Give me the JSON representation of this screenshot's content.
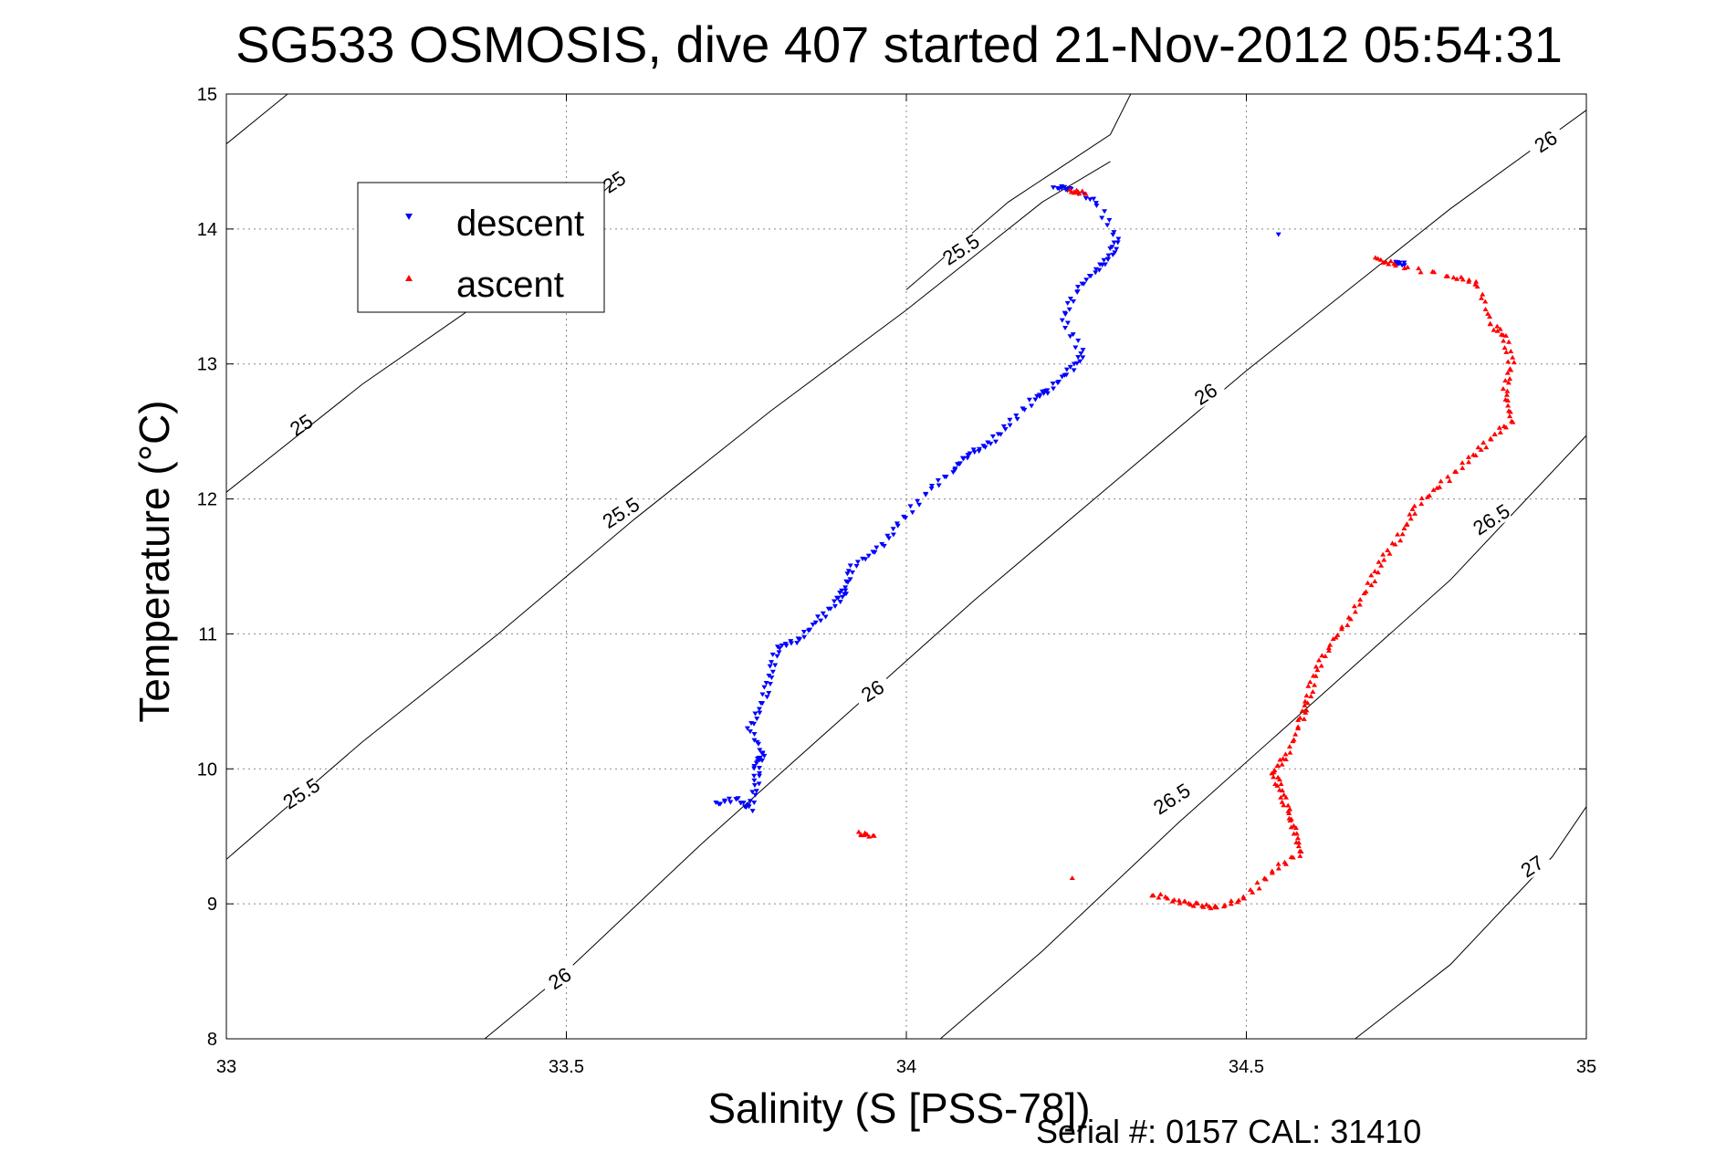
{
  "chart_data": {
    "type": "scatter",
    "title": "SG533 OSMOSIS, dive 407 started 21-Nov-2012 05:54:31",
    "xlabel": "Salinity (S [PSS-78])",
    "ylabel": "Temperature (°C)",
    "xlim": [
      33,
      35
    ],
    "ylim": [
      8,
      15
    ],
    "x_ticks": [
      "33",
      "33.5",
      "34",
      "34.5",
      "35"
    ],
    "y_ticks": [
      "8",
      "9",
      "10",
      "11",
      "12",
      "13",
      "14",
      "15"
    ],
    "grid": true,
    "legend_position": "top-left",
    "footer": "Serial #: 0157  CAL: 31410",
    "series": [
      {
        "name": "descent",
        "color": "#0000ff",
        "marker": "triangle-down",
        "points": [
          [
            33.72,
            9.74
          ],
          [
            33.75,
            9.78
          ],
          [
            33.77,
            9.7
          ],
          [
            33.78,
            9.9
          ],
          [
            33.78,
            10.05
          ],
          [
            33.79,
            10.1
          ],
          [
            33.77,
            10.3
          ],
          [
            33.79,
            10.5
          ],
          [
            33.8,
            10.7
          ],
          [
            33.81,
            10.9
          ],
          [
            33.84,
            10.95
          ],
          [
            33.87,
            11.1
          ],
          [
            33.9,
            11.25
          ],
          [
            33.91,
            11.33
          ],
          [
            33.92,
            11.5
          ],
          [
            33.96,
            11.63
          ],
          [
            33.99,
            11.82
          ],
          [
            34.03,
            12.05
          ],
          [
            34.07,
            12.22
          ],
          [
            34.09,
            12.33
          ],
          [
            34.12,
            12.4
          ],
          [
            34.15,
            12.55
          ],
          [
            34.19,
            12.75
          ],
          [
            34.21,
            12.81
          ],
          [
            34.24,
            12.95
          ],
          [
            34.26,
            13.07
          ],
          [
            34.23,
            13.33
          ],
          [
            34.25,
            13.55
          ],
          [
            34.28,
            13.7
          ],
          [
            34.3,
            13.8
          ],
          [
            34.31,
            13.92
          ],
          [
            34.28,
            14.2
          ],
          [
            34.24,
            14.3
          ],
          [
            34.22,
            14.31
          ],
          [
            34.55,
            13.95
          ],
          [
            34.72,
            13.75
          ],
          [
            34.73,
            13.74
          ]
        ]
      },
      {
        "name": "ascent",
        "color": "#ff0000",
        "marker": "triangle-up",
        "points": [
          [
            33.93,
            9.52
          ],
          [
            33.95,
            9.5
          ],
          [
            34.24,
            9.2
          ],
          [
            34.36,
            9.07
          ],
          [
            34.4,
            9.02
          ],
          [
            34.43,
            8.99
          ],
          [
            34.46,
            8.97
          ],
          [
            34.5,
            9.05
          ],
          [
            34.54,
            9.25
          ],
          [
            34.58,
            9.38
          ],
          [
            34.57,
            9.55
          ],
          [
            34.56,
            9.7
          ],
          [
            34.55,
            9.85
          ],
          [
            34.54,
            9.98
          ],
          [
            34.56,
            10.1
          ],
          [
            34.58,
            10.35
          ],
          [
            34.59,
            10.5
          ],
          [
            34.6,
            10.7
          ],
          [
            34.62,
            10.9
          ],
          [
            34.65,
            11.1
          ],
          [
            34.68,
            11.35
          ],
          [
            34.7,
            11.55
          ],
          [
            34.73,
            11.75
          ],
          [
            34.75,
            11.95
          ],
          [
            34.79,
            12.12
          ],
          [
            34.83,
            12.3
          ],
          [
            34.86,
            12.45
          ],
          [
            34.89,
            12.58
          ],
          [
            34.88,
            12.8
          ],
          [
            34.89,
            13.0
          ],
          [
            34.88,
            13.2
          ],
          [
            34.86,
            13.3
          ],
          [
            34.84,
            13.6
          ],
          [
            34.8,
            13.65
          ],
          [
            34.72,
            13.73
          ],
          [
            34.69,
            13.78
          ],
          [
            34.24,
            14.28
          ],
          [
            34.26,
            14.27
          ]
        ]
      }
    ],
    "contours": [
      {
        "level": "25",
        "points": [
          [
            33,
            14.63
          ],
          [
            33.09,
            15
          ]
        ],
        "labels": [
          {
            "text": "25",
            "at": [
              33.11,
              12.55
            ],
            "angle": -33
          },
          {
            "text": "25",
            "at": [
              33.57,
              14.35
            ],
            "angle": -33
          }
        ]
      },
      {
        "level": "25 (lower)",
        "points": [
          [
            33,
            12.05
          ],
          [
            33.2,
            12.85
          ],
          [
            33.4,
            13.55
          ],
          [
            33.57,
            14.35
          ]
        ],
        "labels": []
      },
      {
        "level": "25.5",
        "points": [
          [
            33,
            9.33
          ],
          [
            33.2,
            10.2
          ],
          [
            33.4,
            11.0
          ],
          [
            33.6,
            11.85
          ],
          [
            33.8,
            12.65
          ],
          [
            34.0,
            13.4
          ],
          [
            34.2,
            14.2
          ],
          [
            34.3,
            14.5
          ]
        ],
        "labels": [
          {
            "text": "25.5",
            "at": [
              33.11,
              9.82
            ],
            "angle": -33
          },
          {
            "text": "25.5",
            "at": [
              33.58,
              11.9
            ],
            "angle": -33
          }
        ]
      },
      {
        "level": "25.5 (upper)",
        "points": [
          [
            34.0,
            13.55
          ],
          [
            34.15,
            14.2
          ],
          [
            34.3,
            14.7
          ],
          [
            34.33,
            15
          ]
        ],
        "labels": [
          {
            "text": "25.5",
            "at": [
              34.08,
              13.85
            ],
            "angle": -33
          }
        ]
      },
      {
        "level": "26",
        "points": [
          [
            33.38,
            8
          ],
          [
            33.5,
            8.5
          ],
          [
            33.7,
            9.45
          ],
          [
            33.9,
            10.35
          ],
          [
            34.1,
            11.25
          ],
          [
            34.3,
            12.1
          ],
          [
            34.5,
            12.95
          ],
          [
            34.6,
            13.35
          ],
          [
            34.8,
            14.15
          ],
          [
            35,
            14.88
          ]
        ],
        "labels": [
          {
            "text": "26",
            "at": [
              33.49,
              8.45
            ],
            "angle": -33
          },
          {
            "text": "26",
            "at": [
              33.95,
              10.58
            ],
            "angle": -33
          },
          {
            "text": "26",
            "at": [
              34.44,
              12.78
            ],
            "angle": -33
          },
          {
            "text": "26",
            "at": [
              34.94,
              14.65
            ],
            "angle": -33
          }
        ]
      },
      {
        "level": "26.5",
        "points": [
          [
            34.05,
            8
          ],
          [
            34.2,
            8.65
          ],
          [
            34.4,
            9.6
          ],
          [
            34.6,
            10.5
          ],
          [
            34.8,
            11.4
          ],
          [
            35,
            12.47
          ]
        ],
        "labels": [
          {
            "text": "26.5",
            "at": [
              34.39,
              9.78
            ],
            "angle": -33
          },
          {
            "text": "26.5",
            "at": [
              34.86,
              11.85
            ],
            "angle": -33
          }
        ]
      },
      {
        "level": "27",
        "points": [
          [
            34.66,
            8
          ],
          [
            34.8,
            8.55
          ],
          [
            34.95,
            9.35
          ],
          [
            35,
            9.72
          ]
        ],
        "labels": [
          {
            "text": "27",
            "at": [
              34.92,
              9.28
            ],
            "angle": -33
          }
        ]
      }
    ]
  }
}
